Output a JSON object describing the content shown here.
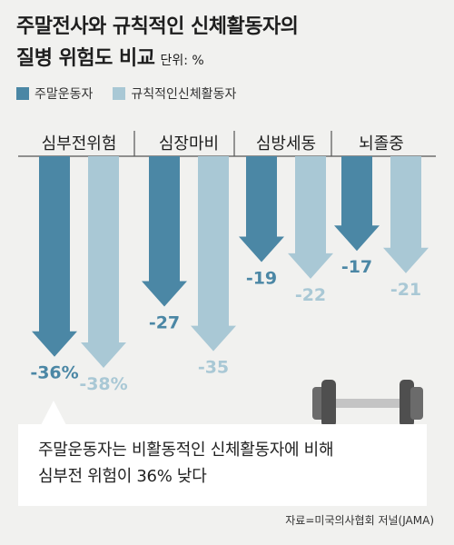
{
  "title_line1": "주말전사와 규칙적인 신체활동자의",
  "title_line2": "질병 위험도 비교",
  "unit": "단위: %",
  "legend": [
    {
      "label": "주말운동자",
      "color": "#4b87a5"
    },
    {
      "label": "규칙적인신체활동자",
      "color": "#a9c8d5"
    }
  ],
  "note_line1": "주말운동자는 비활동적인 신체활동자에 비해",
  "note_line2": "심부전 위험이 36% 낮다",
  "source": "자료=미국의사협회 저널(JAMA)",
  "chart_data": {
    "type": "bar",
    "orientation": "downward-arrows",
    "categories": [
      "심부전위험",
      "심장마비",
      "심방세동",
      "뇌졸중"
    ],
    "series": [
      {
        "name": "주말운동자",
        "color": "#4b87a5",
        "values": [
          -36,
          -27,
          -19,
          -17
        ],
        "labels": [
          "-36%",
          "-27",
          "-19",
          "-17"
        ]
      },
      {
        "name": "규칙적인신체활동자",
        "color": "#a9c8d5",
        "values": [
          -38,
          -35,
          -22,
          -21
        ],
        "labels": [
          "-38%",
          "-35",
          "-22",
          "-21"
        ]
      }
    ],
    "ylim": [
      -38,
      0
    ]
  }
}
